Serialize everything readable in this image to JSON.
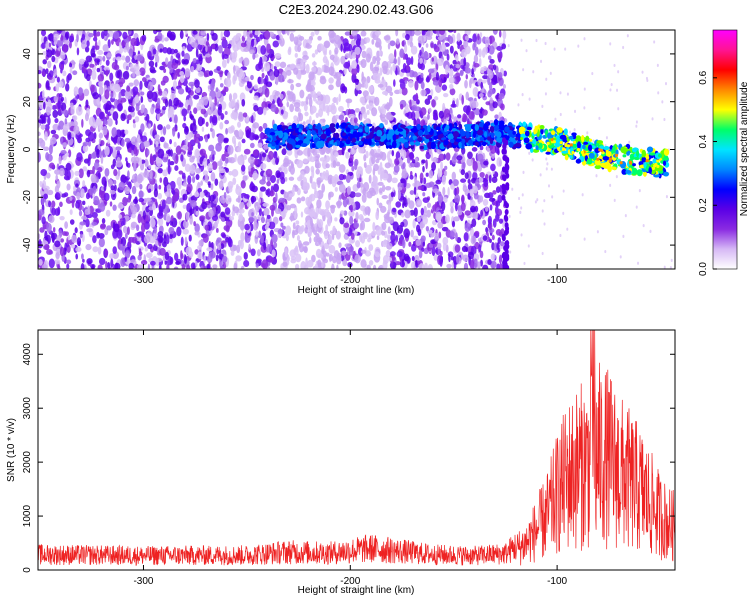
{
  "title": "C2E3.2024.290.02.43.G06",
  "colors": {
    "snr_line": "#ee2222",
    "colormap": [
      "#ffffff",
      "#d6b8f5",
      "#8a2be2",
      "#5a00e6",
      "#0000ff",
      "#0088ff",
      "#00e5ff",
      "#00ff66",
      "#ffff00",
      "#ff8800",
      "#ff0000",
      "#ff1493",
      "#ff00ff"
    ]
  },
  "chart_data": [
    {
      "type": "heatmap",
      "title": "C2E3.2024.290.02.43.G06",
      "xlabel": "Height of straight line (km)",
      "ylabel": "Frequency (Hz)",
      "xlim": [
        -351,
        -43
      ],
      "ylim": [
        -50,
        50
      ],
      "xticks": [
        -300,
        -200,
        -100
      ],
      "yticks": [
        40,
        20,
        0,
        -20,
        -40
      ],
      "colorbar": {
        "label": "Normalized spectral amplitude",
        "range": [
          0,
          0.75
        ],
        "ticks": [
          "0.0",
          "0.2",
          "0.4",
          "0.6"
        ]
      },
      "signal_track": [
        {
          "x": -240,
          "y": 5
        },
        {
          "x": -200,
          "y": 6
        },
        {
          "x": -160,
          "y": 5
        },
        {
          "x": -130,
          "y": 7
        },
        {
          "x": -115,
          "y": 5
        },
        {
          "x": -100,
          "y": 3
        },
        {
          "x": -80,
          "y": -2
        },
        {
          "x": -60,
          "y": -5
        },
        {
          "x": -47,
          "y": -6
        }
      ],
      "noise_cutoff_x": -125,
      "grid": false
    },
    {
      "type": "line",
      "xlabel": "Height of straight line (km)",
      "ylabel": "SNR (10 * v/v)",
      "xlim": [
        -351,
        -43
      ],
      "ylim": [
        0,
        4450
      ],
      "xticks": [
        -300,
        -200,
        -100
      ],
      "yticks": [
        0,
        1000,
        2000,
        3000,
        4000
      ],
      "grid": false,
      "series": [
        {
          "x": [
            -350,
            -300,
            -250,
            -230,
            -210,
            -190,
            -180,
            -160,
            -140,
            -125,
            -115,
            -105,
            -100,
            -95,
            -90,
            -85,
            -80,
            -75,
            -70,
            -65,
            -60,
            -55,
            -50,
            -45
          ],
          "y": [
            300,
            280,
            290,
            350,
            330,
            420,
            380,
            300,
            280,
            320,
            600,
            1200,
            1700,
            2100,
            2300,
            2400,
            2600,
            2500,
            2200,
            2000,
            1800,
            1500,
            1200,
            1000
          ]
        }
      ]
    }
  ]
}
